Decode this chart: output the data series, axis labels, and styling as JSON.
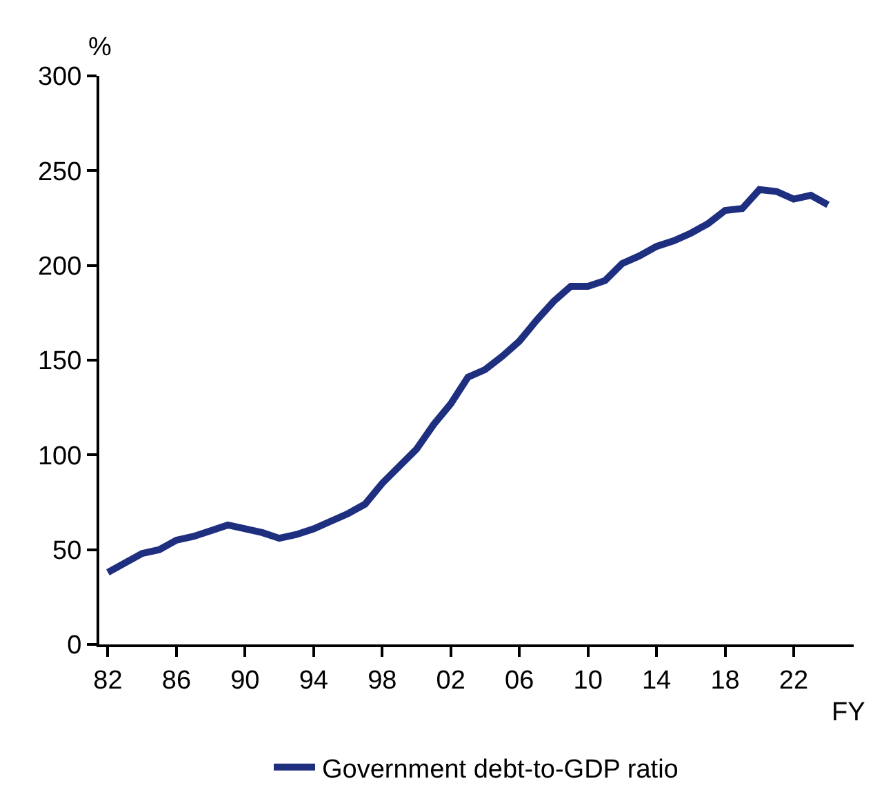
{
  "chart_data": {
    "type": "line",
    "xlabel": "FY",
    "ylabel": "%",
    "x": [
      1982,
      1983,
      1984,
      1985,
      1986,
      1987,
      1988,
      1989,
      1990,
      1991,
      1992,
      1993,
      1994,
      1995,
      1996,
      1997,
      1998,
      1999,
      2000,
      2001,
      2002,
      2003,
      2004,
      2005,
      2006,
      2007,
      2008,
      2009,
      2010,
      2011,
      2012,
      2013,
      2014,
      2015,
      2016,
      2017,
      2018,
      2019,
      2020,
      2021,
      2022,
      2023,
      2024
    ],
    "series": [
      {
        "name": "Government debt-to-GDP ratio",
        "color": "#1f2f7f",
        "values": [
          38,
          43,
          48,
          50,
          55,
          57,
          60,
          63,
          61,
          59,
          56,
          58,
          61,
          65,
          69,
          74,
          85,
          94,
          103,
          116,
          127,
          141,
          145,
          152,
          160,
          171,
          181,
          189,
          189,
          192,
          201,
          205,
          210,
          213,
          217,
          222,
          229,
          230,
          240,
          239,
          235,
          237,
          232
        ]
      }
    ],
    "xlim": [
      1981.5,
      2025.5
    ],
    "xticks": [
      {
        "value": 1982,
        "label": "82"
      },
      {
        "value": 1986,
        "label": "86"
      },
      {
        "value": 1990,
        "label": "90"
      },
      {
        "value": 1994,
        "label": "94"
      },
      {
        "value": 1998,
        "label": "98"
      },
      {
        "value": 2002,
        "label": "02"
      },
      {
        "value": 2006,
        "label": "06"
      },
      {
        "value": 2010,
        "label": "10"
      },
      {
        "value": 2014,
        "label": "14"
      },
      {
        "value": 2018,
        "label": "18"
      },
      {
        "value": 2022,
        "label": "22"
      }
    ],
    "ylim": [
      0,
      300
    ],
    "yticks": [
      0,
      50,
      100,
      150,
      200,
      250,
      300
    ],
    "grid": false,
    "legend": "bottom",
    "marker": "none",
    "line_style": "solid"
  }
}
